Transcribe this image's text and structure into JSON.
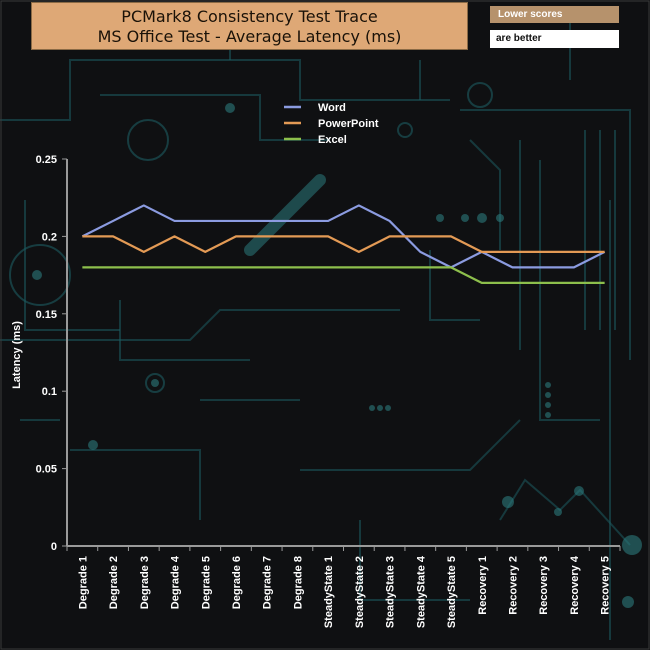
{
  "chart_data": {
    "type": "line",
    "title": "PCMark8 Consistency Test Trace",
    "subtitle": "MS Office Test -  Average Latency (ms)",
    "annotations": [
      "Lower scores",
      "are better"
    ],
    "ylabel": "Latency (ms)",
    "xlabel": "",
    "ylim": [
      0,
      0.25
    ],
    "yticks": [
      "0",
      "0.05",
      "0.1",
      "0.15",
      "0.2",
      "0.25"
    ],
    "legend_position": "top-center",
    "grid": false,
    "categories": [
      "Degrade 1",
      "Degrade 2",
      "Degrade 3",
      "Degrade 4",
      "Degrade 5",
      "Degrade 6",
      "Degrade 7",
      "Degrade 8",
      "SteadyState 1",
      "SteadyState 2",
      "SteadyState 3",
      "SteadyState 4",
      "SteadyState 5",
      "Recovery 1",
      "Recovery 2",
      "Recovery 3",
      "Recovery 4",
      "Recovery 5"
    ],
    "series": [
      {
        "name": "Word",
        "color": "#8b9be0",
        "values": [
          0.2,
          0.21,
          0.22,
          0.21,
          0.21,
          0.21,
          0.21,
          0.21,
          0.21,
          0.22,
          0.21,
          0.19,
          0.18,
          0.19,
          0.18,
          0.18,
          0.18,
          0.19
        ]
      },
      {
        "name": "PowerPoint",
        "color": "#e39a55",
        "values": [
          0.2,
          0.2,
          0.19,
          0.2,
          0.19,
          0.2,
          0.2,
          0.2,
          0.2,
          0.19,
          0.2,
          0.2,
          0.2,
          0.19,
          0.19,
          0.19,
          0.19,
          0.19
        ]
      },
      {
        "name": "Excel",
        "color": "#8dbf4c",
        "values": [
          0.18,
          0.18,
          0.18,
          0.18,
          0.18,
          0.18,
          0.18,
          0.18,
          0.18,
          0.18,
          0.18,
          0.18,
          0.18,
          0.17,
          0.17,
          0.17,
          0.17,
          0.17
        ]
      }
    ]
  }
}
